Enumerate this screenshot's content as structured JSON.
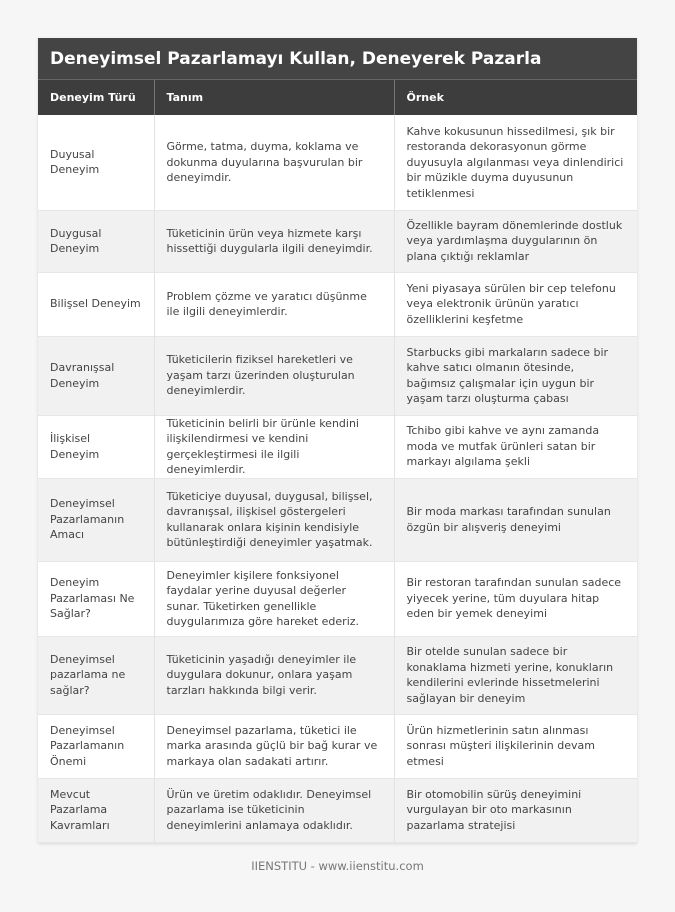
{
  "title": "Deneyimsel Pazarlamayı Kullan, Deneyerek Pazarla",
  "headers": [
    "Deneyim Türü",
    "Tanım",
    "Örnek"
  ],
  "rows": [
    [
      "Duyusal Deneyim",
      "Görme, tatma, duyma, koklama ve dokunma duyularına başvurulan bir deneyimdir.",
      "Kahve kokusunun hissedilmesi, şık bir restoranda dekorasyonun görme duyusuyla algılanması veya dinlendirici bir müzikle duyma duyusunun tetiklenmesi"
    ],
    [
      "Duygusal Deneyim",
      "Tüketicinin ürün veya hizmete karşı hissettiği duygularla ilgili deneyimdir.",
      "Özellikle bayram dönemlerinde dostluk veya yardımlaşma duygularının ön plana çıktığı reklamlar"
    ],
    [
      "Bilişsel Deneyim",
      "Problem çözme ve yaratıcı düşünme ile ilgili deneyimlerdir.",
      "Yeni piyasaya sürülen bir cep telefonu veya elektronik ürünün yaratıcı özelliklerini keşfetme"
    ],
    [
      "Davranışsal Deneyim",
      "Tüketicilerin fiziksel hareketleri ve yaşam tarzı üzerinden oluşturulan deneyimlerdir.",
      "Starbucks gibi markaların sadece bir kahve satıcı olmanın ötesinde, bağımsız çalışmalar için uygun bir yaşam tarzı oluşturma çabası"
    ],
    [
      "İlişkisel Deneyim",
      "Tüketicinin belirli bir ürünle kendini ilişkilendirmesi ve kendini gerçekleştirmesi ile ilgili deneyimlerdir.",
      "Tchibo gibi kahve ve aynı zamanda moda ve mutfak ürünleri satan bir markayı algılama şekli"
    ],
    [
      "Deneyimsel Pazarlamanın Amacı",
      "Tüketiciye duyusal, duygusal, bilişsel, davranışsal, ilişkisel göstergeleri kullanarak onlara kişinin kendisiyle bütünleştirdiği deneyimler yaşatmak.",
      "Bir moda markası tarafından sunulan özgün bir alışveriş deneyimi"
    ],
    [
      "Deneyim Pazarlaması Ne Sağlar?",
      "Deneyimler kişilere fonksiyonel faydalar yerine duyusal değerler sunar. Tüketirken genellikle duygularımıza göre hareket ederiz.",
      "Bir restoran tarafından sunulan sadece yiyecek yerine, tüm duyulara hitap eden bir yemek deneyimi"
    ],
    [
      "Deneyimsel pazarlama ne sağlar?",
      "Tüketicinin yaşadığı deneyimler ile duygulara dokunur, onlara yaşam tarzları hakkında bilgi verir.",
      "Bir otelde sunulan sadece bir konaklama hizmeti yerine, konukların kendilerini evlerinde hissetmelerini sağlayan bir deneyim"
    ],
    [
      "Deneyimsel Pazarlamanın Önemi",
      "Deneyimsel pazarlama, tüketici ile marka arasında güçlü bir bağ kurar ve markaya olan sadakati artırır.",
      "Ürün hizmetlerinin satın alınması sonrası müşteri ilişkilerinin devam etmesi"
    ],
    [
      "Mevcut Pazarlama Kavramları",
      "Ürün ve üretim odaklıdır. Deneyimsel pazarlama ise tüketicinin deneyimlerini anlamaya odaklıdır.",
      "Bir otomobilin sürüş deneyimini vurgulayan bir oto markasının pazarlama stratejisi"
    ]
  ],
  "footer": "IIENSTITU - www.iienstitu.com"
}
